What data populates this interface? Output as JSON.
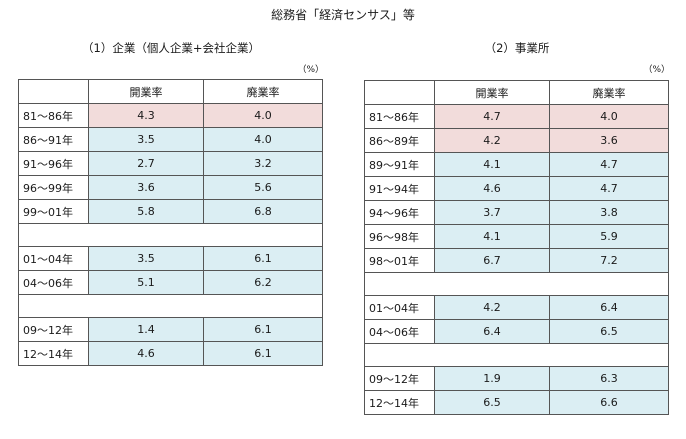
{
  "source_title": "総務省「経済センサス」等",
  "unit": "（%）",
  "colors": {
    "blue": "#dbeef3",
    "pink": "#f2dcdb"
  },
  "left": {
    "title": "（1）企業（個人企業+会社企業）",
    "headers": [
      "開業率",
      "廃業率"
    ],
    "rows": [
      {
        "type": "data",
        "label": "81～86年",
        "open": "4.3",
        "close": "4.0",
        "color": "pink"
      },
      {
        "type": "data",
        "label": "86～91年",
        "open": "3.5",
        "close": "4.0",
        "color": "blue"
      },
      {
        "type": "data",
        "label": "91～96年",
        "open": "2.7",
        "close": "3.2",
        "color": "blue"
      },
      {
        "type": "data",
        "label": "96～99年",
        "open": "3.6",
        "close": "5.6",
        "color": "blue"
      },
      {
        "type": "data",
        "label": "99～01年",
        "open": "5.8",
        "close": "6.8",
        "color": "blue"
      },
      {
        "type": "gap"
      },
      {
        "type": "data",
        "label": "01～04年",
        "open": "3.5",
        "close": "6.1",
        "color": "blue"
      },
      {
        "type": "data",
        "label": "04～06年",
        "open": "5.1",
        "close": "6.2",
        "color": "blue"
      },
      {
        "type": "gap"
      },
      {
        "type": "data",
        "label": "09～12年",
        "open": "1.4",
        "close": "6.1",
        "color": "blue"
      },
      {
        "type": "data",
        "label": "12～14年",
        "open": "4.6",
        "close": "6.1",
        "color": "blue"
      }
    ]
  },
  "right": {
    "title": "（2）事業所",
    "headers": [
      "開業率",
      "廃業率"
    ],
    "rows": [
      {
        "type": "data",
        "label": "81～86年",
        "open": "4.7",
        "close": "4.0",
        "color": "pink"
      },
      {
        "type": "data",
        "label": "86～89年",
        "open": "4.2",
        "close": "3.6",
        "color": "pink"
      },
      {
        "type": "data",
        "label": "89～91年",
        "open": "4.1",
        "close": "4.7",
        "color": "blue"
      },
      {
        "type": "data",
        "label": "91～94年",
        "open": "4.6",
        "close": "4.7",
        "color": "blue"
      },
      {
        "type": "data",
        "label": "94～96年",
        "open": "3.7",
        "close": "3.8",
        "color": "blue"
      },
      {
        "type": "data",
        "label": "96～98年",
        "open": "4.1",
        "close": "5.9",
        "color": "blue"
      },
      {
        "type": "data",
        "label": "98～01年",
        "open": "6.7",
        "close": "7.2",
        "color": "blue"
      },
      {
        "type": "gap"
      },
      {
        "type": "data",
        "label": "01～04年",
        "open": "4.2",
        "close": "6.4",
        "color": "blue"
      },
      {
        "type": "data",
        "label": "04～06年",
        "open": "6.4",
        "close": "6.5",
        "color": "blue"
      },
      {
        "type": "gap"
      },
      {
        "type": "data",
        "label": "09～12年",
        "open": "1.9",
        "close": "6.3",
        "color": "blue"
      },
      {
        "type": "data",
        "label": "12～14年",
        "open": "6.5",
        "close": "6.6",
        "color": "blue"
      }
    ]
  }
}
